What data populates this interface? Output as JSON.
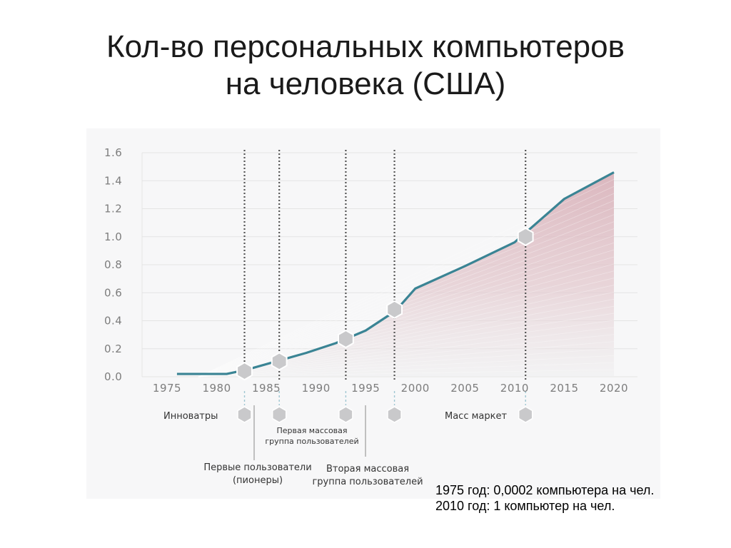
{
  "title": {
    "line1": "Кол-во персональных компьютеров",
    "line2": "на человека (США)"
  },
  "notes": [
    "1975 год: 0,0002 компьютера на чел.",
    "2010 год: 1 компьютер на чел."
  ],
  "colors": {
    "line": "#3a8494",
    "fill": "#dcbcc3",
    "marker": "#c9c9cb",
    "gridline": "#e4e4e4",
    "guide": "#555555",
    "dashed": "#9fc6d2"
  },
  "chart_data": {
    "type": "area",
    "x": [
      1976,
      1981,
      1983,
      1986,
      1989,
      1992,
      1995,
      1998,
      2000,
      2005,
      2010,
      2015,
      2020
    ],
    "series": [
      {
        "values": [
          0.02,
          0.02,
          0.05,
          0.11,
          0.17,
          0.24,
          0.33,
          0.47,
          0.63,
          0.79,
          0.96,
          1.27,
          1.46
        ]
      }
    ],
    "xticks": [
      "1975",
      "1980",
      "1985",
      "1990",
      "1995",
      "2000",
      "2005",
      "2010",
      "2015",
      "2020"
    ],
    "yticks": [
      "0.0",
      "0.2",
      "0.4",
      "0.6",
      "0.8",
      "1.0",
      "1.2",
      "1.4",
      "1.6"
    ],
    "xlim": [
      1975,
      2020
    ],
    "ylim": [
      0,
      1.6
    ],
    "grid": true,
    "phase_years": [
      1982.8,
      1986.3,
      1993.0,
      1997.9,
      2011.1
    ],
    "phase_values": [
      0.04,
      0.11,
      0.27,
      0.48,
      1.0
    ],
    "annotations": {
      "innovators": "Инноватры",
      "mass_market": "Масс маркет",
      "first_mass_group": [
        "Первая массовая",
        "группа пользователей"
      ],
      "first_users": [
        "Первые пользователи",
        "(пионеры)"
      ],
      "second_mass_group": [
        "Вторая массовая",
        "группа пользователей"
      ]
    }
  }
}
